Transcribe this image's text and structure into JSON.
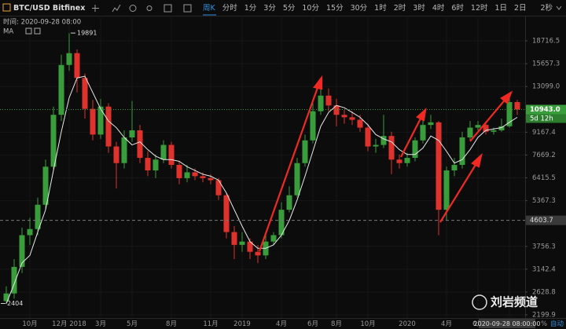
{
  "header": {
    "symbol": "BTC/USD Bitfinex",
    "intervals": [
      "周K",
      "分时",
      "1分",
      "3分",
      "5分",
      "10分",
      "15分",
      "30分",
      "1时",
      "2时",
      "3时",
      "4时",
      "6时",
      "12时",
      "1日",
      "2日"
    ],
    "refresh": "2秒",
    "time_label": "时间: 2020-09-28 08:00"
  },
  "chart_data": {
    "type": "candlestick",
    "log_scale": true,
    "grid": true,
    "up_color": "#3a9d3c",
    "down_color": "#e0322c",
    "categories": [
      null,
      null,
      null,
      "10月",
      null,
      null,
      null,
      null,
      "12月 2018",
      null,
      null,
      null,
      "3月",
      null,
      null,
      null,
      "5月",
      null,
      null,
      null,
      null,
      "8月",
      null,
      null,
      null,
      null,
      "11月",
      null,
      null,
      null,
      "2019",
      null,
      null,
      null,
      null,
      "4月",
      null,
      null,
      null,
      "6月",
      null,
      null,
      "8月",
      null,
      null,
      null,
      "10月",
      null,
      null,
      null,
      null,
      "2020",
      null,
      null,
      null,
      null,
      "4月",
      null,
      null,
      null,
      "6月",
      null,
      null,
      null,
      "8月",
      null
    ],
    "candles": {
      "open": [
        2450,
        2600,
        3200,
        4100,
        4300,
        5200,
        7000,
        10500,
        15500,
        17000,
        14000,
        11000,
        9000,
        11200,
        8200,
        7200,
        8800,
        9300,
        7500,
        6800,
        7400,
        8300,
        7100,
        6400,
        6700,
        6500,
        6400,
        6300,
        5600,
        4200,
        3800,
        3900,
        3600,
        3500,
        3900,
        4100,
        5000,
        5600,
        7200,
        8600,
        10800,
        12200,
        11300,
        10500,
        10300,
        10100,
        9500,
        8200,
        8300,
        8900,
        7400,
        7200,
        7500,
        8600,
        9700,
        9900,
        5000,
        6800,
        7100,
        8800,
        9500,
        9700,
        9200,
        9300,
        9600,
        11600
      ],
      "high": [
        2750,
        3400,
        4350,
        4700,
        5500,
        7400,
        11200,
        16800,
        19891,
        17500,
        14500,
        11800,
        11900,
        11500,
        8500,
        9300,
        11700,
        9700,
        7900,
        7700,
        8600,
        8500,
        7300,
        7100,
        6900,
        6700,
        6600,
        6400,
        5700,
        4400,
        4200,
        4000,
        3800,
        4100,
        4200,
        5300,
        6000,
        7500,
        9000,
        11500,
        13800,
        12900,
        11900,
        10900,
        10800,
        10500,
        9800,
        8700,
        10500,
        9200,
        7700,
        7800,
        8800,
        10100,
        10500,
        10000,
        7000,
        7500,
        9200,
        10000,
        10000,
        9900,
        9500,
        10200,
        12400,
        11800
      ],
      "low": [
        2404,
        2500,
        3050,
        3800,
        4100,
        5000,
        6800,
        10000,
        14800,
        12500,
        10200,
        8600,
        8700,
        7800,
        5900,
        6900,
        8500,
        7200,
        6500,
        6400,
        7200,
        6900,
        6100,
        6200,
        6300,
        6200,
        6100,
        5400,
        4000,
        3400,
        3600,
        3400,
        3300,
        3400,
        3800,
        4000,
        4900,
        5500,
        7000,
        8400,
        10500,
        10800,
        9600,
        9800,
        9700,
        9200,
        7900,
        7800,
        8100,
        6600,
        6900,
        7000,
        7300,
        8400,
        9400,
        4100,
        4600,
        6500,
        6900,
        8600,
        9300,
        9000,
        9000,
        9200,
        9500,
        10500
      ],
      "close": [
        2600,
        3200,
        4100,
        4300,
        5200,
        7000,
        10500,
        15500,
        17000,
        14000,
        11000,
        9000,
        11200,
        8200,
        7200,
        8800,
        9300,
        7500,
        6800,
        7400,
        8300,
        7100,
        6400,
        6700,
        6500,
        6400,
        6300,
        5600,
        4200,
        3800,
        3900,
        3600,
        3500,
        3900,
        4100,
        5000,
        5600,
        7200,
        8600,
        10800,
        12200,
        11300,
        10500,
        10300,
        10100,
        9500,
        8200,
        8300,
        8900,
        7400,
        7200,
        7500,
        8600,
        9700,
        9900,
        5000,
        6800,
        7100,
        8800,
        9500,
        9700,
        9200,
        9300,
        9600,
        11600,
        10943
      ]
    },
    "ma": {
      "name": "MA",
      "color": "#e8e8e8",
      "values": [
        2400,
        2800,
        3300,
        3500,
        4200,
        5000,
        6800,
        9200,
        12000,
        14000,
        14200,
        12500,
        11000,
        10000,
        9500,
        8800,
        8300,
        8500,
        8000,
        7600,
        7400,
        7400,
        7300,
        7000,
        6800,
        6600,
        6500,
        6300,
        5700,
        5000,
        4400,
        3900,
        3700,
        3700,
        3800,
        4100,
        4600,
        5400,
        6500,
        7900,
        9600,
        10700,
        11300,
        11100,
        10700,
        10300,
        9700,
        9000,
        8700,
        8500,
        8000,
        7700,
        7700,
        8100,
        8900,
        8600,
        7900,
        7200,
        7400,
        8000,
        8800,
        9300,
        9400,
        9500,
        9900,
        10300
      ]
    },
    "ylim": [
      2146,
      22780
    ],
    "yticks": [
      2199.9,
      2628.8,
      3142.4,
      3756.3,
      5367.3,
      6415.5,
      7669.2,
      9167.4,
      {
        "value": 13099,
        "label": "13099.0"
      },
      15657.3,
      18716.5
    ],
    "last_price": {
      "value": 10943,
      "label": "10943.0"
    },
    "countdown": "5d 12h",
    "crosshair_price": 4603.7,
    "crosshair_time": "2020-09-28 08:00:00"
  },
  "footer": {
    "percent": "%",
    "auto": "自动"
  },
  "watermark": "刘岩频道"
}
